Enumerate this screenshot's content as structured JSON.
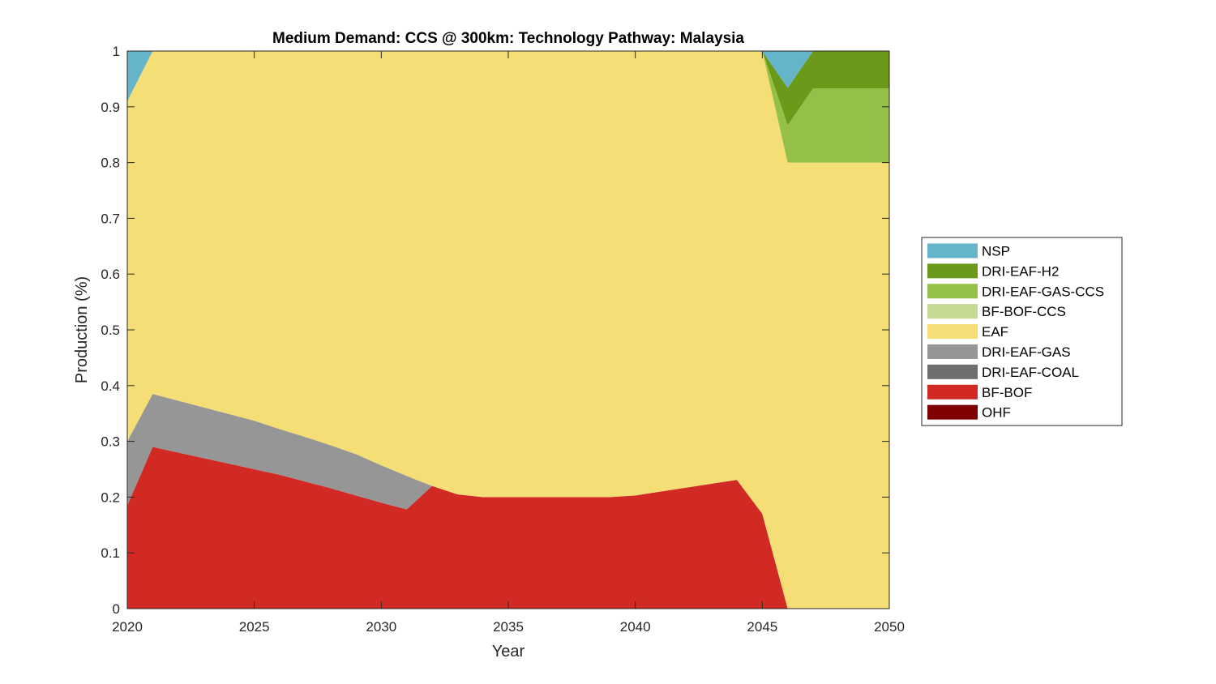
{
  "chart_data": {
    "type": "area",
    "title": "Medium Demand: CCS @ 300km: Technology Pathway: Malaysia",
    "xlabel": "Year",
    "ylabel": "Production (%)",
    "xlim": [
      2020,
      2050
    ],
    "ylim": [
      0,
      1
    ],
    "grid": false,
    "legend_position": "right",
    "x": [
      2020,
      2021,
      2022,
      2023,
      2024,
      2025,
      2026,
      2027,
      2028,
      2029,
      2030,
      2031,
      2032,
      2033,
      2034,
      2035,
      2036,
      2037,
      2038,
      2039,
      2040,
      2041,
      2042,
      2043,
      2044,
      2045,
      2046,
      2047,
      2048,
      2049,
      2050
    ],
    "x_ticks": [
      2020,
      2025,
      2030,
      2035,
      2040,
      2045,
      2050
    ],
    "y_ticks": [
      0,
      0.1,
      0.2,
      0.3,
      0.4,
      0.5,
      0.6,
      0.7,
      0.8,
      0.9,
      1
    ],
    "series": [
      {
        "name": "OHF",
        "color": "#7f0000",
        "values": [
          0,
          0,
          0,
          0,
          0,
          0,
          0,
          0,
          0,
          0,
          0,
          0,
          0,
          0,
          0,
          0,
          0,
          0,
          0,
          0,
          0,
          0,
          0,
          0,
          0,
          0,
          0,
          0,
          0,
          0,
          0
        ]
      },
      {
        "name": "BF-BOF",
        "color": "#d12a25",
        "values": [
          0.185,
          0.29,
          0.28,
          0.27,
          0.26,
          0.25,
          0.24,
          0.228,
          0.216,
          0.203,
          0.19,
          0.178,
          0.22,
          0.205,
          0.2,
          0.2,
          0.2,
          0.2,
          0.2,
          0.2,
          0.203,
          0.21,
          0.217,
          0.224,
          0.231,
          0.17,
          0,
          0,
          0,
          0,
          0
        ]
      },
      {
        "name": "DRI-EAF-COAL",
        "color": "#6e6e6e",
        "values": [
          0,
          0,
          0,
          0,
          0,
          0,
          0,
          0,
          0,
          0,
          0,
          0,
          0,
          0,
          0,
          0,
          0,
          0,
          0,
          0,
          0,
          0,
          0,
          0,
          0,
          0,
          0,
          0,
          0,
          0,
          0
        ]
      },
      {
        "name": "DRI-EAF-GAS",
        "color": "#969696",
        "values": [
          0.115,
          0.095,
          0.093,
          0.091,
          0.089,
          0.087,
          0.082,
          0.08,
          0.077,
          0.074,
          0.067,
          0.06,
          0,
          0,
          0,
          0,
          0,
          0,
          0,
          0,
          0,
          0,
          0,
          0,
          0,
          0,
          0,
          0,
          0,
          0,
          0
        ]
      },
      {
        "name": "EAF",
        "color": "#f6de76",
        "values": [
          0.61,
          0.615,
          0.627,
          0.639,
          0.651,
          0.663,
          0.678,
          0.692,
          0.707,
          0.723,
          0.743,
          0.762,
          0.78,
          0.795,
          0.8,
          0.8,
          0.8,
          0.8,
          0.8,
          0.8,
          0.797,
          0.79,
          0.783,
          0.776,
          0.769,
          0.83,
          0.8,
          0.8,
          0.8,
          0.8,
          0.8
        ]
      },
      {
        "name": "BF-BOF-CCS",
        "color": "#c5db94",
        "values": [
          0,
          0,
          0,
          0,
          0,
          0,
          0,
          0,
          0,
          0,
          0,
          0,
          0,
          0,
          0,
          0,
          0,
          0,
          0,
          0,
          0,
          0,
          0,
          0,
          0,
          0,
          0,
          0,
          0,
          0,
          0
        ]
      },
      {
        "name": "DRI-EAF-GAS-CCS",
        "color": "#95c047",
        "values": [
          0,
          0,
          0,
          0,
          0,
          0,
          0,
          0,
          0,
          0,
          0,
          0,
          0,
          0,
          0,
          0,
          0,
          0,
          0,
          0,
          0,
          0,
          0,
          0,
          0,
          0,
          0.067,
          0.133,
          0.133,
          0.133,
          0.133
        ]
      },
      {
        "name": "DRI-EAF-H2",
        "color": "#6b9a1b",
        "values": [
          0,
          0,
          0,
          0,
          0,
          0,
          0,
          0,
          0,
          0,
          0,
          0,
          0,
          0,
          0,
          0,
          0,
          0,
          0,
          0,
          0,
          0,
          0,
          0,
          0,
          0,
          0.067,
          0.067,
          0.067,
          0.067,
          0.067
        ]
      },
      {
        "name": "NSP",
        "color": "#64b5c9",
        "values": [
          0.09,
          0,
          0,
          0,
          0,
          0,
          0,
          0,
          0,
          0,
          0,
          0,
          0,
          0,
          0,
          0,
          0,
          0,
          0,
          0,
          0,
          0,
          0,
          0,
          0,
          0,
          0.066,
          0,
          0,
          0,
          0
        ]
      }
    ],
    "legend_order": [
      "NSP",
      "DRI-EAF-H2",
      "DRI-EAF-GAS-CCS",
      "BF-BOF-CCS",
      "EAF",
      "DRI-EAF-GAS",
      "DRI-EAF-COAL",
      "BF-BOF",
      "OHF"
    ]
  }
}
